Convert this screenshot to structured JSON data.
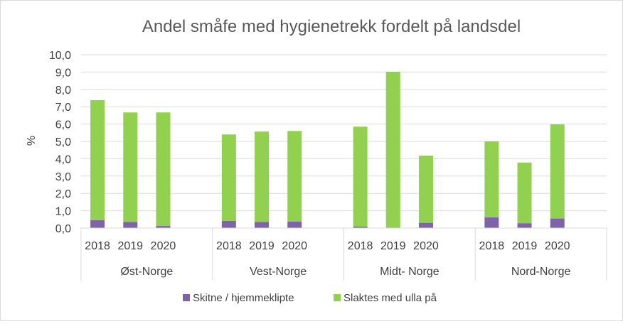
{
  "chart_data": {
    "type": "bar",
    "stacked": true,
    "title": "Andel småfe med hygienetrekk fordelt på landsdel",
    "ylabel": "%",
    "ylim": [
      0,
      10
    ],
    "yticks": [
      "0,0",
      "1,0",
      "2,0",
      "3,0",
      "4,0",
      "5,0",
      "6,0",
      "7,0",
      "8,0",
      "9,0",
      "10,0"
    ],
    "grid": true,
    "legend_position": "bottom",
    "groups": [
      {
        "name": "Øst-Norge",
        "categories": [
          "2018",
          "2019",
          "2020"
        ]
      },
      {
        "name": "Vest-Norge",
        "categories": [
          "2018",
          "2019",
          "2020"
        ]
      },
      {
        "name": "Midt- Norge",
        "categories": [
          "2018",
          "2019",
          "2020"
        ]
      },
      {
        "name": "Nord-Norge",
        "categories": [
          "2018",
          "2019",
          "2020"
        ]
      }
    ],
    "series": [
      {
        "name": "Skitne / hjemmeklipte",
        "color": "#7f62a8",
        "values": [
          0.45,
          0.35,
          0.12,
          0.42,
          0.35,
          0.38,
          0.08,
          0.02,
          0.3,
          0.62,
          0.28,
          0.55
        ]
      },
      {
        "name": "Slaktes med ulla på",
        "color": "#92d050",
        "values": [
          6.93,
          6.32,
          6.55,
          4.98,
          5.22,
          5.22,
          5.77,
          9.0,
          3.88,
          4.38,
          3.5,
          5.43
        ]
      }
    ]
  }
}
